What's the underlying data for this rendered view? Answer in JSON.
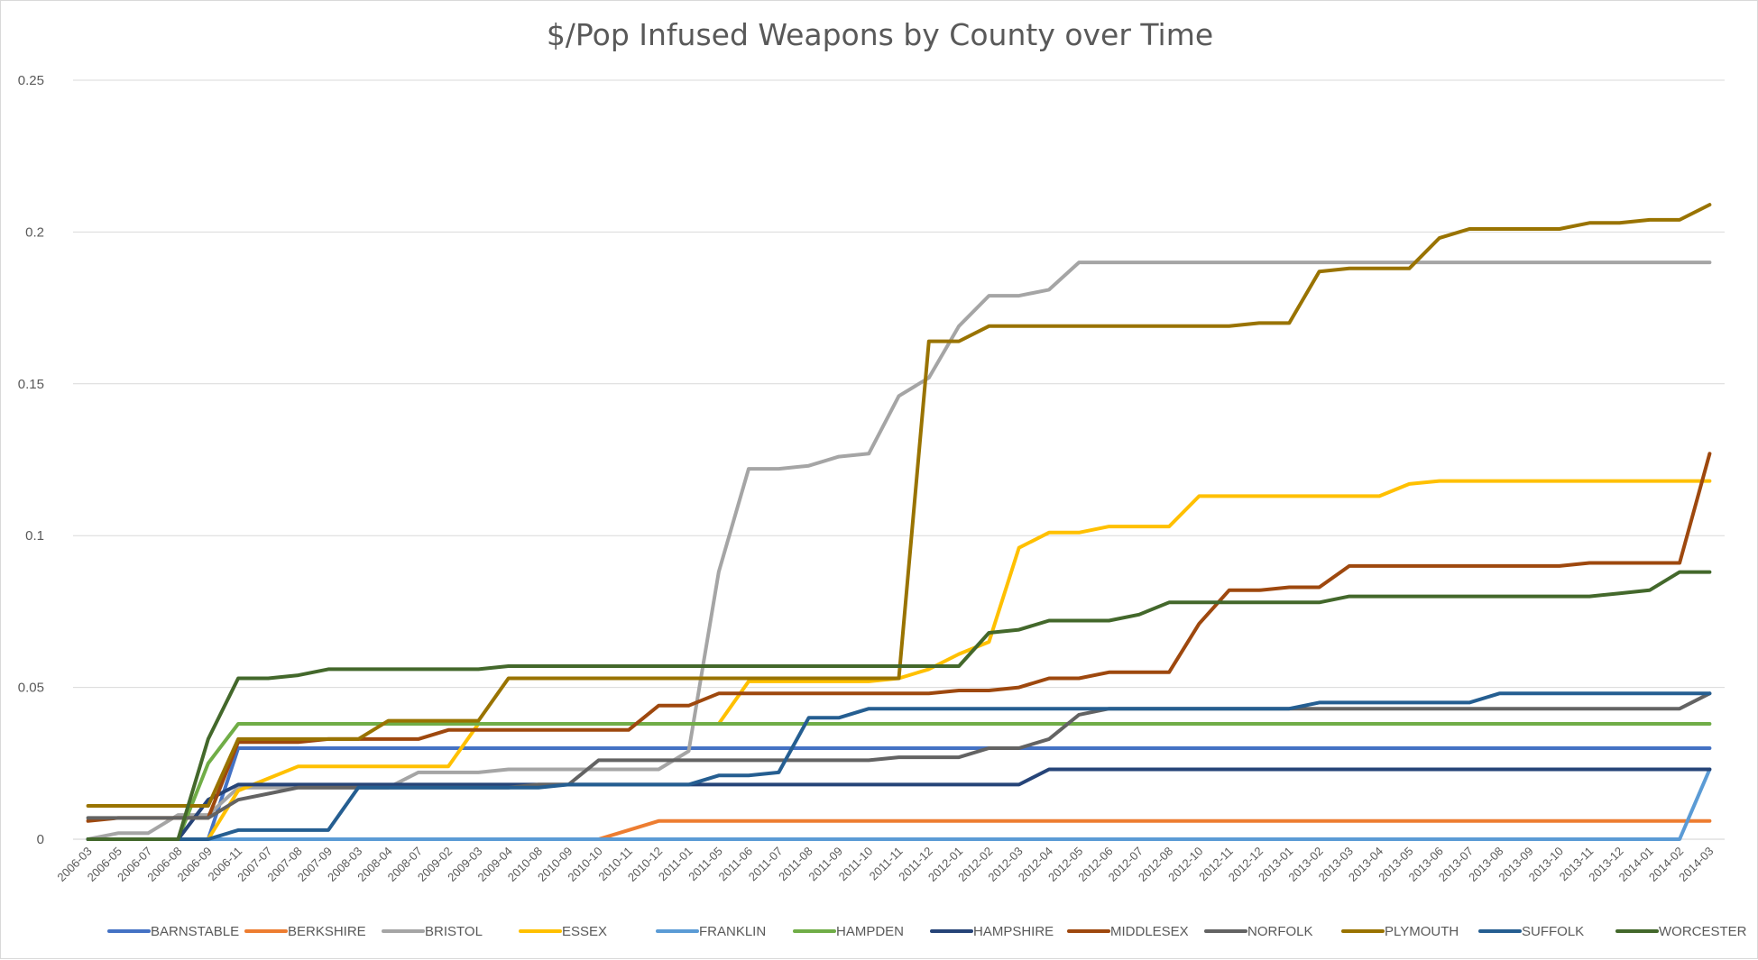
{
  "chart_data": {
    "type": "line",
    "title": "$/Pop Infused Weapons by County over Time",
    "xlabel": "",
    "ylabel": "",
    "ylim": [
      0,
      0.25
    ],
    "yticks": [
      "0",
      "0.05",
      "0.1",
      "0.15",
      "0.2",
      "0.25"
    ],
    "grid": "horizontal",
    "legend_position": "bottom",
    "categories": [
      "2006-03",
      "2006-05",
      "2006-07",
      "2006-08",
      "2006-09",
      "2006-11",
      "2007-07",
      "2007-08",
      "2007-09",
      "2008-03",
      "2008-04",
      "2008-07",
      "2009-02",
      "2009-03",
      "2009-04",
      "2010-08",
      "2010-09",
      "2010-10",
      "2010-11",
      "2010-12",
      "2011-01",
      "2011-05",
      "2011-06",
      "2011-07",
      "2011-08",
      "2011-09",
      "2011-10",
      "2011-11",
      "2011-12",
      "2012-01",
      "2012-02",
      "2012-03",
      "2012-04",
      "2012-05",
      "2012-06",
      "2012-07",
      "2012-08",
      "2012-10",
      "2012-11",
      "2012-12",
      "2013-01",
      "2013-02",
      "2013-03",
      "2013-04",
      "2013-05",
      "2013-06",
      "2013-07",
      "2013-08",
      "2013-09",
      "2013-10",
      "2013-11",
      "2013-12",
      "2014-01",
      "2014-02",
      "2014-03"
    ],
    "series": [
      {
        "name": "BARNSTABLE",
        "color": "#4472C4",
        "values": [
          0,
          0,
          0,
          0,
          0,
          0.03,
          0.03,
          0.03,
          0.03,
          0.03,
          0.03,
          0.03,
          0.03,
          0.03,
          0.03,
          0.03,
          0.03,
          0.03,
          0.03,
          0.03,
          0.03,
          0.03,
          0.03,
          0.03,
          0.03,
          0.03,
          0.03,
          0.03,
          0.03,
          0.03,
          0.03,
          0.03,
          0.03,
          0.03,
          0.03,
          0.03,
          0.03,
          0.03,
          0.03,
          0.03,
          0.03,
          0.03,
          0.03,
          0.03,
          0.03,
          0.03,
          0.03,
          0.03,
          0.03,
          0.03,
          0.03,
          0.03,
          0.03,
          0.03,
          0.03
        ]
      },
      {
        "name": "BERKSHIRE",
        "color": "#ED7D31",
        "values": [
          0,
          0,
          0,
          0,
          0,
          0,
          0,
          0,
          0,
          0,
          0,
          0,
          0,
          0,
          0,
          0,
          0,
          0,
          0.003,
          0.006,
          0.006,
          0.006,
          0.006,
          0.006,
          0.006,
          0.006,
          0.006,
          0.006,
          0.006,
          0.006,
          0.006,
          0.006,
          0.006,
          0.006,
          0.006,
          0.006,
          0.006,
          0.006,
          0.006,
          0.006,
          0.006,
          0.006,
          0.006,
          0.006,
          0.006,
          0.006,
          0.006,
          0.006,
          0.006,
          0.006,
          0.006,
          0.006,
          0.006,
          0.006,
          0.006
        ]
      },
      {
        "name": "BRISTOL",
        "color": "#A5A5A5",
        "values": [
          0,
          0.002,
          0.002,
          0.008,
          0.008,
          0.017,
          0.017,
          0.017,
          0.017,
          0.017,
          0.017,
          0.022,
          0.022,
          0.022,
          0.023,
          0.023,
          0.023,
          0.023,
          0.023,
          0.023,
          0.029,
          0.088,
          0.122,
          0.122,
          0.123,
          0.126,
          0.127,
          0.146,
          0.152,
          0.169,
          0.179,
          0.179,
          0.181,
          0.19,
          0.19,
          0.19,
          0.19,
          0.19,
          0.19,
          0.19,
          0.19,
          0.19,
          0.19,
          0.19,
          0.19,
          0.19,
          0.19,
          0.19,
          0.19,
          0.19,
          0.19,
          0.19,
          0.19,
          0.19,
          0.19
        ]
      },
      {
        "name": "ESSEX",
        "color": "#FFC000",
        "values": [
          0,
          0,
          0,
          0,
          0,
          0.016,
          0.02,
          0.024,
          0.024,
          0.024,
          0.024,
          0.024,
          0.024,
          0.038,
          0.038,
          0.038,
          0.038,
          0.038,
          0.038,
          0.038,
          0.038,
          0.038,
          0.052,
          0.052,
          0.052,
          0.052,
          0.052,
          0.053,
          0.056,
          0.061,
          0.065,
          0.096,
          0.101,
          0.101,
          0.103,
          0.103,
          0.103,
          0.113,
          0.113,
          0.113,
          0.113,
          0.113,
          0.113,
          0.113,
          0.117,
          0.118,
          0.118,
          0.118,
          0.118,
          0.118,
          0.118,
          0.118,
          0.118,
          0.118,
          0.118
        ]
      },
      {
        "name": "FRANKLIN",
        "color": "#5B9BD5",
        "values": [
          0,
          0,
          0,
          0,
          0,
          0,
          0,
          0,
          0,
          0,
          0,
          0,
          0,
          0,
          0,
          0,
          0,
          0,
          0,
          0,
          0,
          0,
          0,
          0,
          0,
          0,
          0,
          0,
          0,
          0,
          0,
          0,
          0,
          0,
          0,
          0,
          0,
          0,
          0,
          0,
          0,
          0,
          0,
          0,
          0,
          0,
          0,
          0,
          0,
          0,
          0,
          0,
          0,
          0,
          0.023
        ]
      },
      {
        "name": "HAMPDEN",
        "color": "#70AD47",
        "values": [
          0,
          0,
          0,
          0,
          0.025,
          0.038,
          0.038,
          0.038,
          0.038,
          0.038,
          0.038,
          0.038,
          0.038,
          0.038,
          0.038,
          0.038,
          0.038,
          0.038,
          0.038,
          0.038,
          0.038,
          0.038,
          0.038,
          0.038,
          0.038,
          0.038,
          0.038,
          0.038,
          0.038,
          0.038,
          0.038,
          0.038,
          0.038,
          0.038,
          0.038,
          0.038,
          0.038,
          0.038,
          0.038,
          0.038,
          0.038,
          0.038,
          0.038,
          0.038,
          0.038,
          0.038,
          0.038,
          0.038,
          0.038,
          0.038,
          0.038,
          0.038,
          0.038,
          0.038,
          0.038
        ]
      },
      {
        "name": "HAMPSHIRE",
        "color": "#264478",
        "values": [
          0,
          0,
          0,
          0,
          0.013,
          0.018,
          0.018,
          0.018,
          0.018,
          0.018,
          0.018,
          0.018,
          0.018,
          0.018,
          0.018,
          0.018,
          0.018,
          0.018,
          0.018,
          0.018,
          0.018,
          0.018,
          0.018,
          0.018,
          0.018,
          0.018,
          0.018,
          0.018,
          0.018,
          0.018,
          0.018,
          0.018,
          0.023,
          0.023,
          0.023,
          0.023,
          0.023,
          0.023,
          0.023,
          0.023,
          0.023,
          0.023,
          0.023,
          0.023,
          0.023,
          0.023,
          0.023,
          0.023,
          0.023,
          0.023,
          0.023,
          0.023,
          0.023,
          0.023,
          0.023
        ]
      },
      {
        "name": "MIDDLESEX",
        "color": "#9E480E",
        "values": [
          0.006,
          0.007,
          0.007,
          0.007,
          0.007,
          0.032,
          0.032,
          0.032,
          0.033,
          0.033,
          0.033,
          0.033,
          0.036,
          0.036,
          0.036,
          0.036,
          0.036,
          0.036,
          0.036,
          0.044,
          0.044,
          0.048,
          0.048,
          0.048,
          0.048,
          0.048,
          0.048,
          0.048,
          0.048,
          0.049,
          0.049,
          0.05,
          0.053,
          0.053,
          0.055,
          0.055,
          0.055,
          0.071,
          0.082,
          0.082,
          0.083,
          0.083,
          0.09,
          0.09,
          0.09,
          0.09,
          0.09,
          0.09,
          0.09,
          0.09,
          0.091,
          0.091,
          0.091,
          0.091,
          0.127
        ]
      },
      {
        "name": "NORFOLK",
        "color": "#636363",
        "values": [
          0.007,
          0.007,
          0.007,
          0.007,
          0.007,
          0.013,
          0.015,
          0.017,
          0.017,
          0.017,
          0.017,
          0.017,
          0.017,
          0.017,
          0.017,
          0.018,
          0.018,
          0.026,
          0.026,
          0.026,
          0.026,
          0.026,
          0.026,
          0.026,
          0.026,
          0.026,
          0.026,
          0.027,
          0.027,
          0.027,
          0.03,
          0.03,
          0.033,
          0.041,
          0.043,
          0.043,
          0.043,
          0.043,
          0.043,
          0.043,
          0.043,
          0.043,
          0.043,
          0.043,
          0.043,
          0.043,
          0.043,
          0.043,
          0.043,
          0.043,
          0.043,
          0.043,
          0.043,
          0.043,
          0.048
        ]
      },
      {
        "name": "PLYMOUTH",
        "color": "#997300",
        "values": [
          0.011,
          0.011,
          0.011,
          0.011,
          0.011,
          0.033,
          0.033,
          0.033,
          0.033,
          0.033,
          0.039,
          0.039,
          0.039,
          0.039,
          0.053,
          0.053,
          0.053,
          0.053,
          0.053,
          0.053,
          0.053,
          0.053,
          0.053,
          0.053,
          0.053,
          0.053,
          0.053,
          0.053,
          0.164,
          0.164,
          0.169,
          0.169,
          0.169,
          0.169,
          0.169,
          0.169,
          0.169,
          0.169,
          0.169,
          0.17,
          0.17,
          0.187,
          0.188,
          0.188,
          0.188,
          0.198,
          0.201,
          0.201,
          0.201,
          0.201,
          0.203,
          0.203,
          0.204,
          0.204,
          0.209
        ]
      },
      {
        "name": "SUFFOLK",
        "color": "#255E91",
        "values": [
          0,
          0,
          0,
          0,
          0,
          0.003,
          0.003,
          0.003,
          0.003,
          0.017,
          0.017,
          0.017,
          0.017,
          0.017,
          0.017,
          0.017,
          0.018,
          0.018,
          0.018,
          0.018,
          0.018,
          0.021,
          0.021,
          0.022,
          0.04,
          0.04,
          0.043,
          0.043,
          0.043,
          0.043,
          0.043,
          0.043,
          0.043,
          0.043,
          0.043,
          0.043,
          0.043,
          0.043,
          0.043,
          0.043,
          0.043,
          0.045,
          0.045,
          0.045,
          0.045,
          0.045,
          0.045,
          0.048,
          0.048,
          0.048,
          0.048,
          0.048,
          0.048,
          0.048,
          0.048
        ]
      },
      {
        "name": "WORCESTER",
        "color": "#43682B",
        "values": [
          0,
          0,
          0,
          0,
          0.033,
          0.053,
          0.053,
          0.054,
          0.056,
          0.056,
          0.056,
          0.056,
          0.056,
          0.056,
          0.057,
          0.057,
          0.057,
          0.057,
          0.057,
          0.057,
          0.057,
          0.057,
          0.057,
          0.057,
          0.057,
          0.057,
          0.057,
          0.057,
          0.057,
          0.057,
          0.068,
          0.069,
          0.072,
          0.072,
          0.072,
          0.074,
          0.078,
          0.078,
          0.078,
          0.078,
          0.078,
          0.078,
          0.08,
          0.08,
          0.08,
          0.08,
          0.08,
          0.08,
          0.08,
          0.08,
          0.08,
          0.081,
          0.082,
          0.088,
          0.088
        ]
      }
    ]
  }
}
